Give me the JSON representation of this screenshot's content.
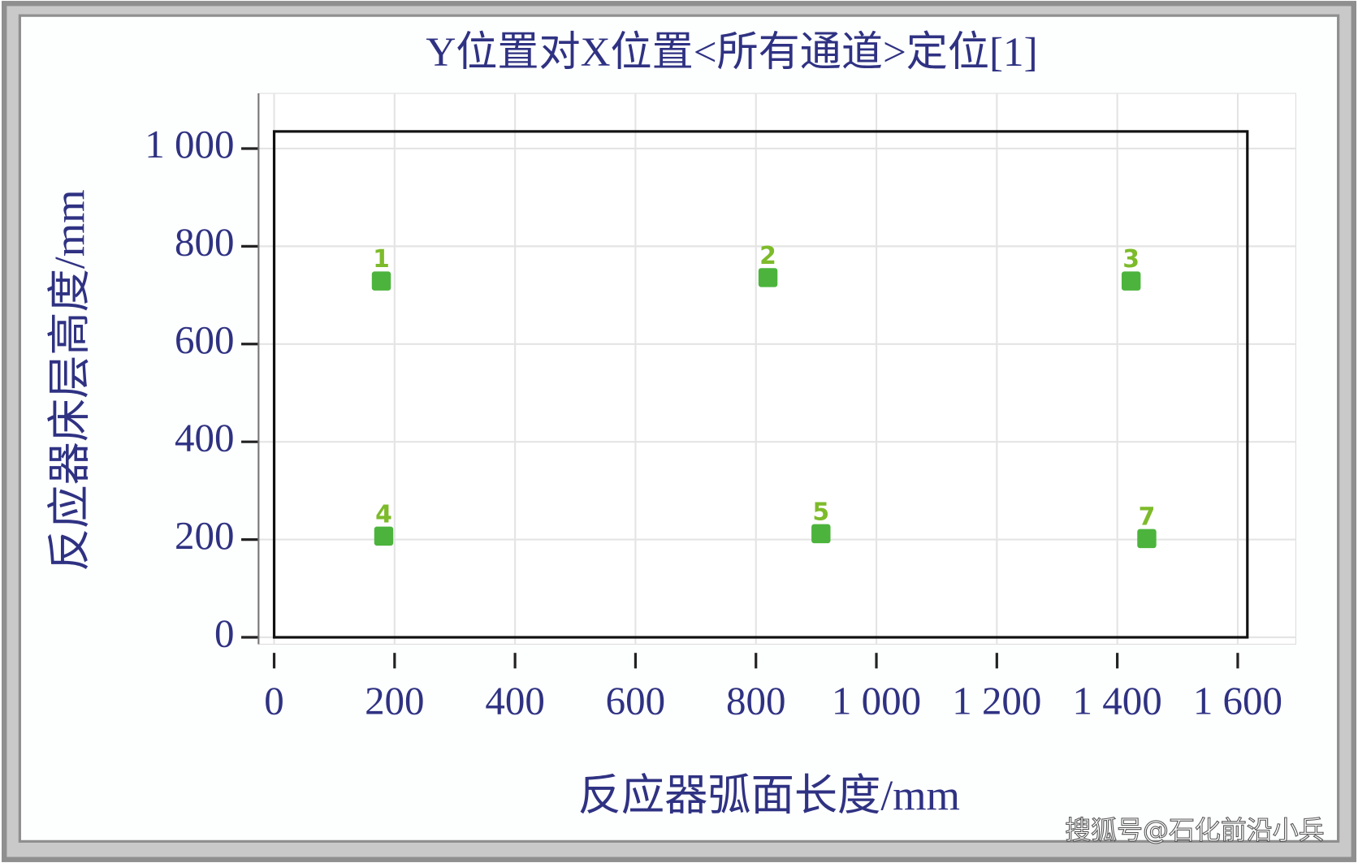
{
  "chart_data": {
    "type": "scatter",
    "title": "Y位置对X位置<所有通道>定位[1]",
    "x_label": "反应器弧面长度/mm",
    "y_label": "反应器床层高度/mm",
    "x": [
      178,
      820,
      1423,
      182,
      908,
      1449
    ],
    "y": [
      729,
      736,
      729,
      207,
      212,
      202
    ],
    "labels": [
      "1",
      "2",
      "3",
      "4",
      "5",
      "7"
    ],
    "color": "#4cb43c",
    "xlim": [
      0,
      1616
    ],
    "ylim": [
      0,
      1035
    ],
    "xticks": [
      0,
      200,
      400,
      600,
      800,
      {
        "value": 1000,
        "label": "1 000"
      },
      {
        "value": 1200,
        "label": "1 200"
      },
      {
        "value": 1400,
        "label": "1 400"
      },
      {
        "value": 1600,
        "label": "1 600"
      }
    ],
    "yticks": [
      0,
      200,
      400,
      600,
      800,
      {
        "value": 1000,
        "label": "1 000"
      }
    ],
    "grid": true,
    "watermark": "搜狐号@石化前沿小兵"
  }
}
